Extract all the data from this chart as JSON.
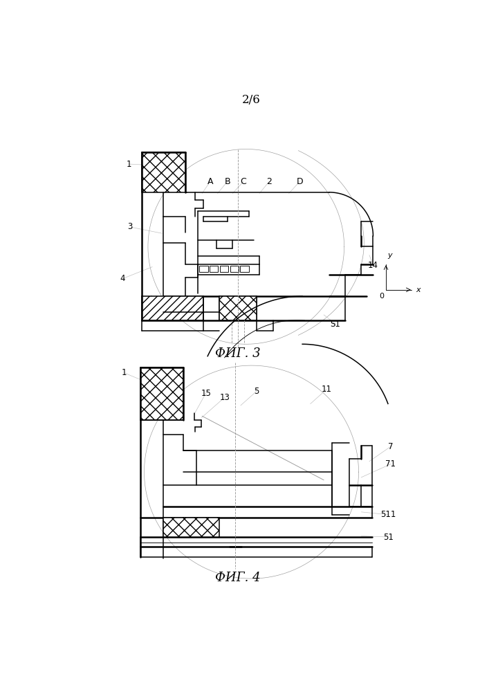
{
  "page_label": "2/6",
  "fig3_label": "ФИГ. 3",
  "fig4_label": "ФИГ. 4",
  "bg_color": "#ffffff",
  "lc": "#000000",
  "lc_gray": "#999999",
  "lc_light": "#bbbbbb"
}
